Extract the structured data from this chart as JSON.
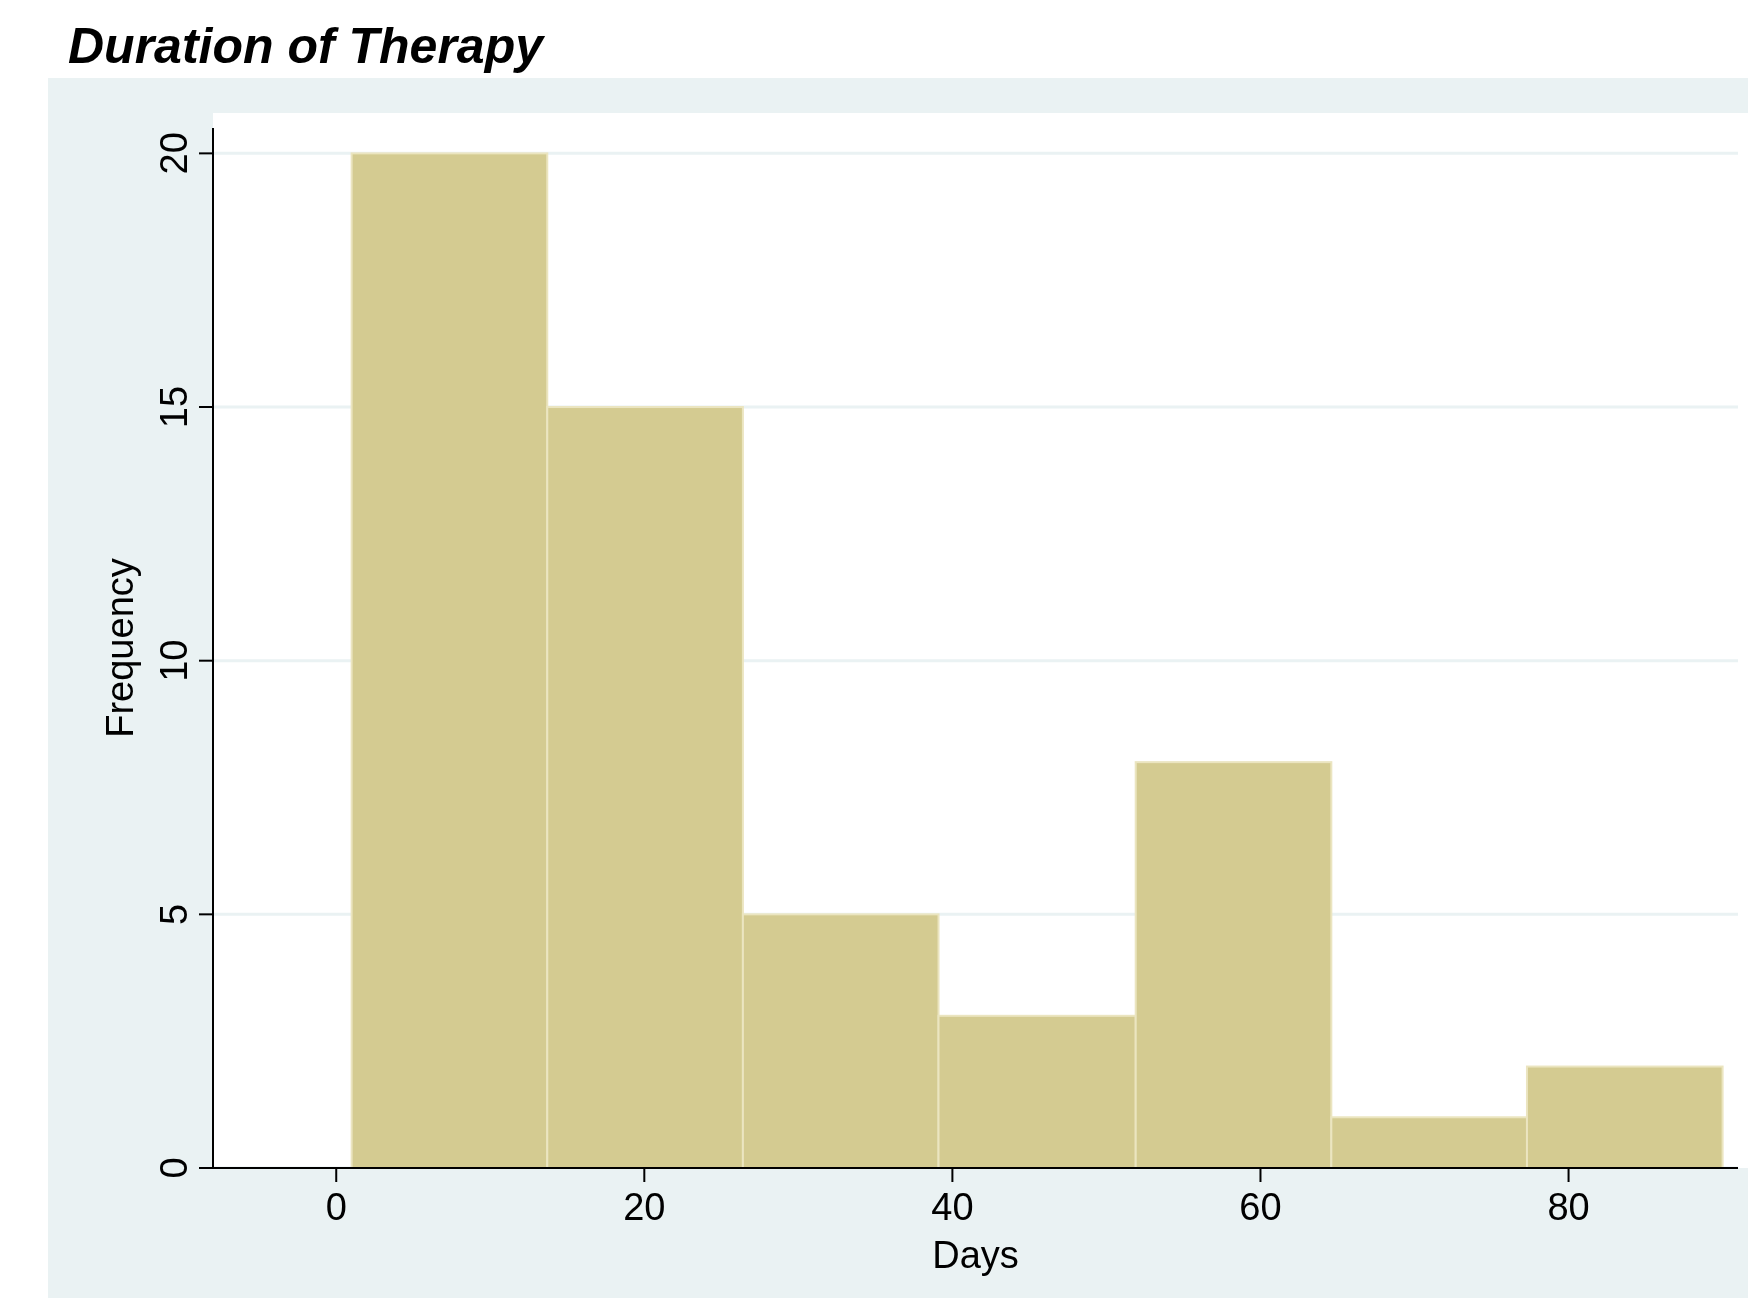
{
  "chart_data": {
    "type": "histogram",
    "title": "Duration of Therapy",
    "xlabel": "Days",
    "ylabel": "Frequency",
    "bins": [
      1,
      13.7,
      26.4,
      39.1,
      51.9,
      64.6,
      77.3,
      90
    ],
    "values": [
      20,
      15,
      5,
      3,
      8,
      1,
      2
    ],
    "color": "#d4cb91",
    "xlim": [
      -8,
      91
    ],
    "xticks": [
      0,
      20,
      40,
      60,
      80
    ],
    "ylim": [
      0,
      20.5
    ],
    "yticks": [
      0,
      5,
      10,
      15,
      20
    ],
    "grid": "y"
  }
}
